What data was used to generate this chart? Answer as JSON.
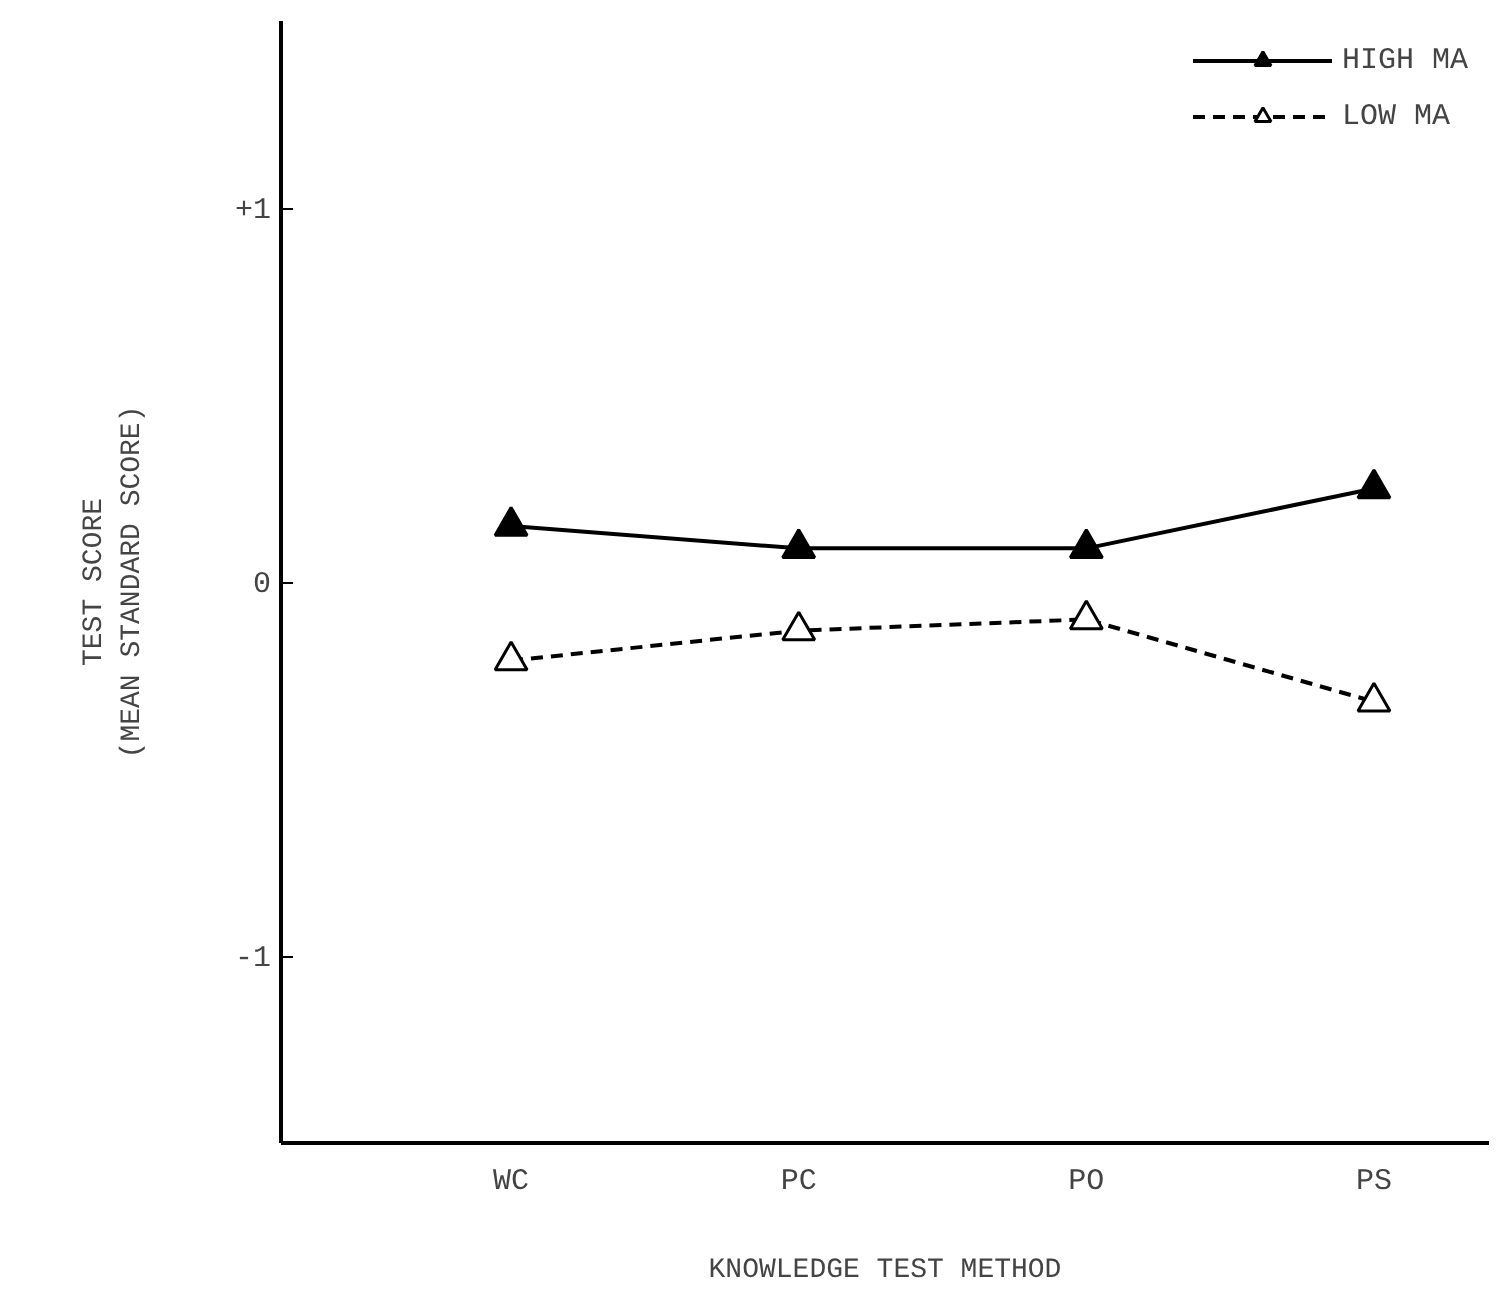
{
  "chart_data": {
    "type": "line",
    "xlabel": "KNOWLEDGE TEST METHOD",
    "ylabel": "TEST SCORE\n(MEAN STANDARD SCORE)",
    "categories": [
      "WC",
      "PC",
      "PO",
      "PS"
    ],
    "series": [
      {
        "name": "HIGH MA",
        "color": "#000000",
        "values": [
          0.15,
          0.09,
          0.09,
          0.25
        ],
        "marker": "triangle",
        "line_style": "solid"
      },
      {
        "name": "LOW MA",
        "color": "#000000",
        "values": [
          -0.21,
          -0.13,
          -0.1,
          -0.32
        ],
        "marker": "triangle",
        "line_style": "dashed"
      }
    ],
    "ylim": [
      -1.5,
      1.5
    ],
    "yticks": [
      {
        "value": -1,
        "label": "-1"
      },
      0,
      {
        "value": 1,
        "label": "+1"
      }
    ],
    "grid": false,
    "legend": "top right"
  }
}
